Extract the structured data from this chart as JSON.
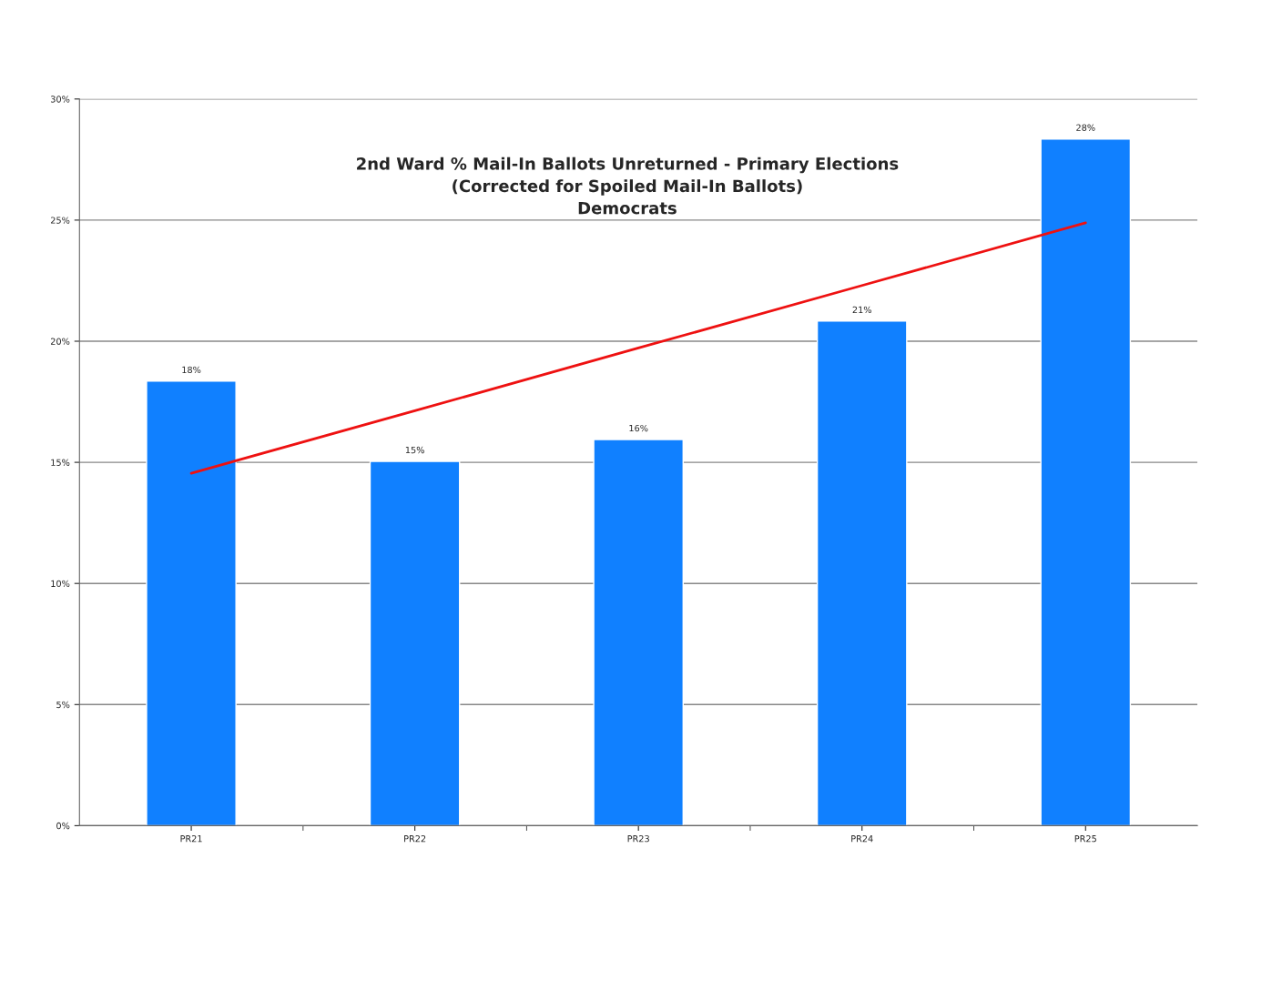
{
  "chart_data": {
    "type": "bar",
    "title": "2nd Ward % Mail-In Ballots Unreturned - Primary Elections\n(Corrected for Spoiled Mail-In Ballots)\nDemocrats",
    "categories": [
      "PR21",
      "PR22",
      "PR23",
      "PR24",
      "PR25"
    ],
    "series": [
      {
        "color": "#1080ff",
        "values": [
          18.35,
          15.04,
          15.94,
          20.83,
          28.35
        ],
        "value_labels": [
          "18%",
          "15%",
          "16%",
          "21%",
          "28%"
        ]
      },
      {
        "type": "line",
        "color": "#ee1111",
        "values": [
          14.55,
          17.13,
          19.72,
          22.3,
          24.89
        ]
      }
    ],
    "ylim": [
      0,
      30
    ],
    "yticks": [
      {
        "value": 0,
        "label": "0%"
      },
      {
        "value": 5,
        "label": "5%"
      },
      {
        "value": 10,
        "label": "10%"
      },
      {
        "value": 15,
        "label": "15%"
      },
      {
        "value": 20,
        "label": "20%"
      },
      {
        "value": 25,
        "label": "25%"
      },
      {
        "value": 30,
        "label": "30%"
      }
    ],
    "grid": "y",
    "marker": "none",
    "line_style": "solid"
  }
}
